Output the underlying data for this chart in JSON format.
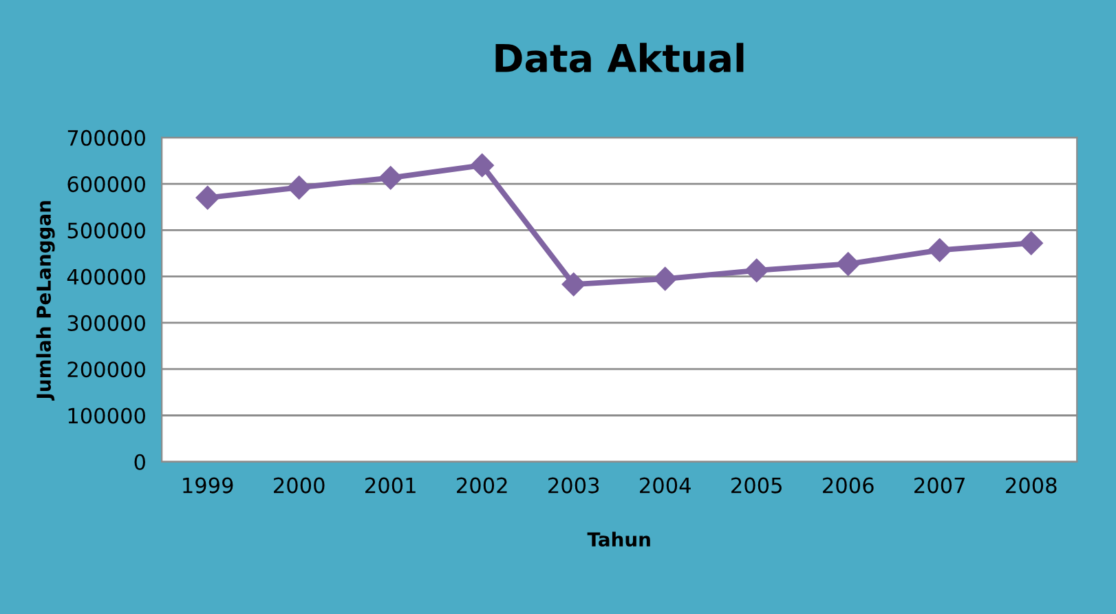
{
  "chart_data": {
    "type": "line",
    "title": "Data Aktual",
    "xlabel": "Tahun",
    "ylabel": "Jumlah PeLanggan",
    "categories": [
      "1999",
      "2000",
      "2001",
      "2002",
      "2003",
      "2004",
      "2005",
      "2006",
      "2007",
      "2008"
    ],
    "series": [
      {
        "color": "#8064a2",
        "values": [
          570000,
          592000,
          613000,
          640000,
          383000,
          395000,
          413000,
          427000,
          457000,
          472000
        ]
      }
    ],
    "ylim": [
      0,
      700000
    ],
    "yticks": [
      0,
      100000,
      200000,
      300000,
      400000,
      500000,
      600000,
      700000
    ],
    "grid": "y",
    "legend": false,
    "marker": "diamond",
    "line_style": "solid"
  }
}
